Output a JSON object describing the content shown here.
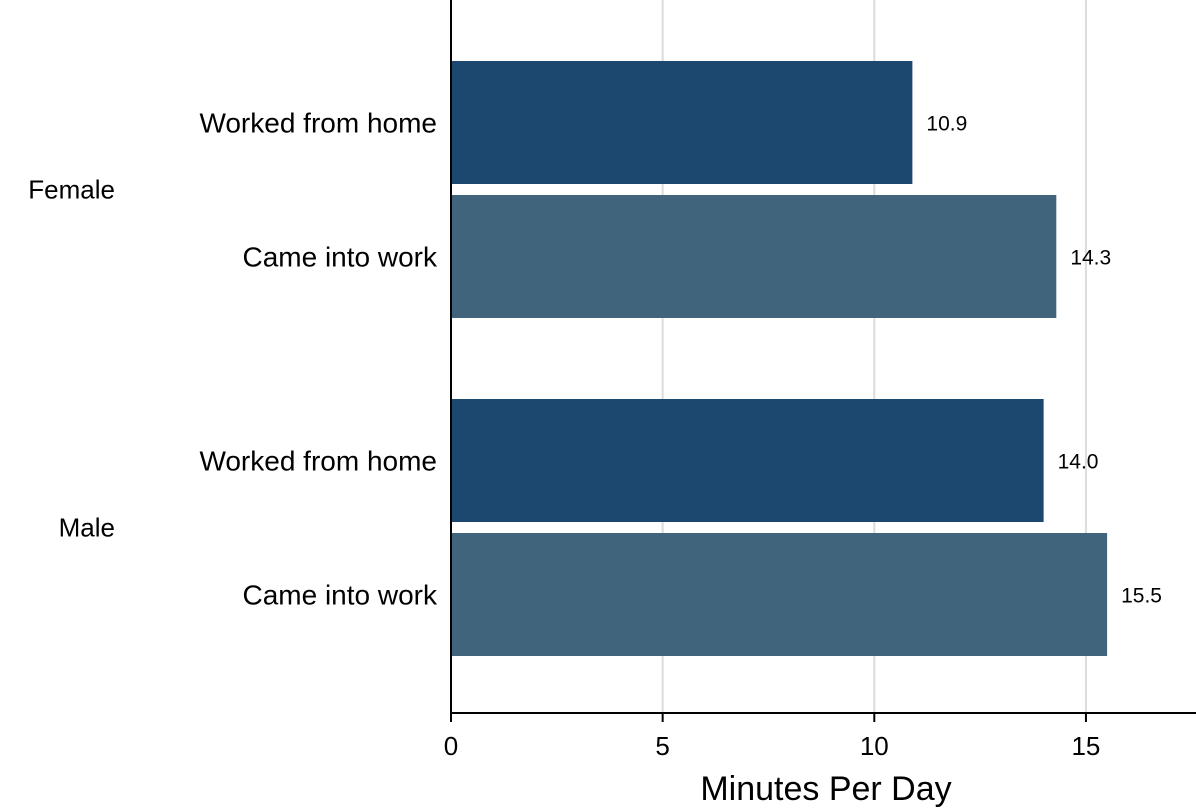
{
  "chart_data": {
    "type": "bar",
    "orientation": "horizontal",
    "groups": [
      {
        "label": "Female",
        "bars": [
          {
            "category": "Worked from home",
            "value": 10.9,
            "value_label": "10.9"
          },
          {
            "category": "Came into work",
            "value": 14.3,
            "value_label": "14.3"
          }
        ]
      },
      {
        "label": "Male",
        "bars": [
          {
            "category": "Worked from home",
            "value": 14.0,
            "value_label": "14.0"
          },
          {
            "category": "Came into work",
            "value": 15.5,
            "value_label": "15.5"
          }
        ]
      }
    ],
    "xlabel": "Minutes Per Day",
    "xlim": [
      0,
      17.6
    ],
    "xticks": [
      0,
      5,
      10,
      15
    ],
    "grid": "vertical",
    "colors": {
      "Worked from home": "#1c4870",
      "Came into work": "#41647d"
    }
  }
}
